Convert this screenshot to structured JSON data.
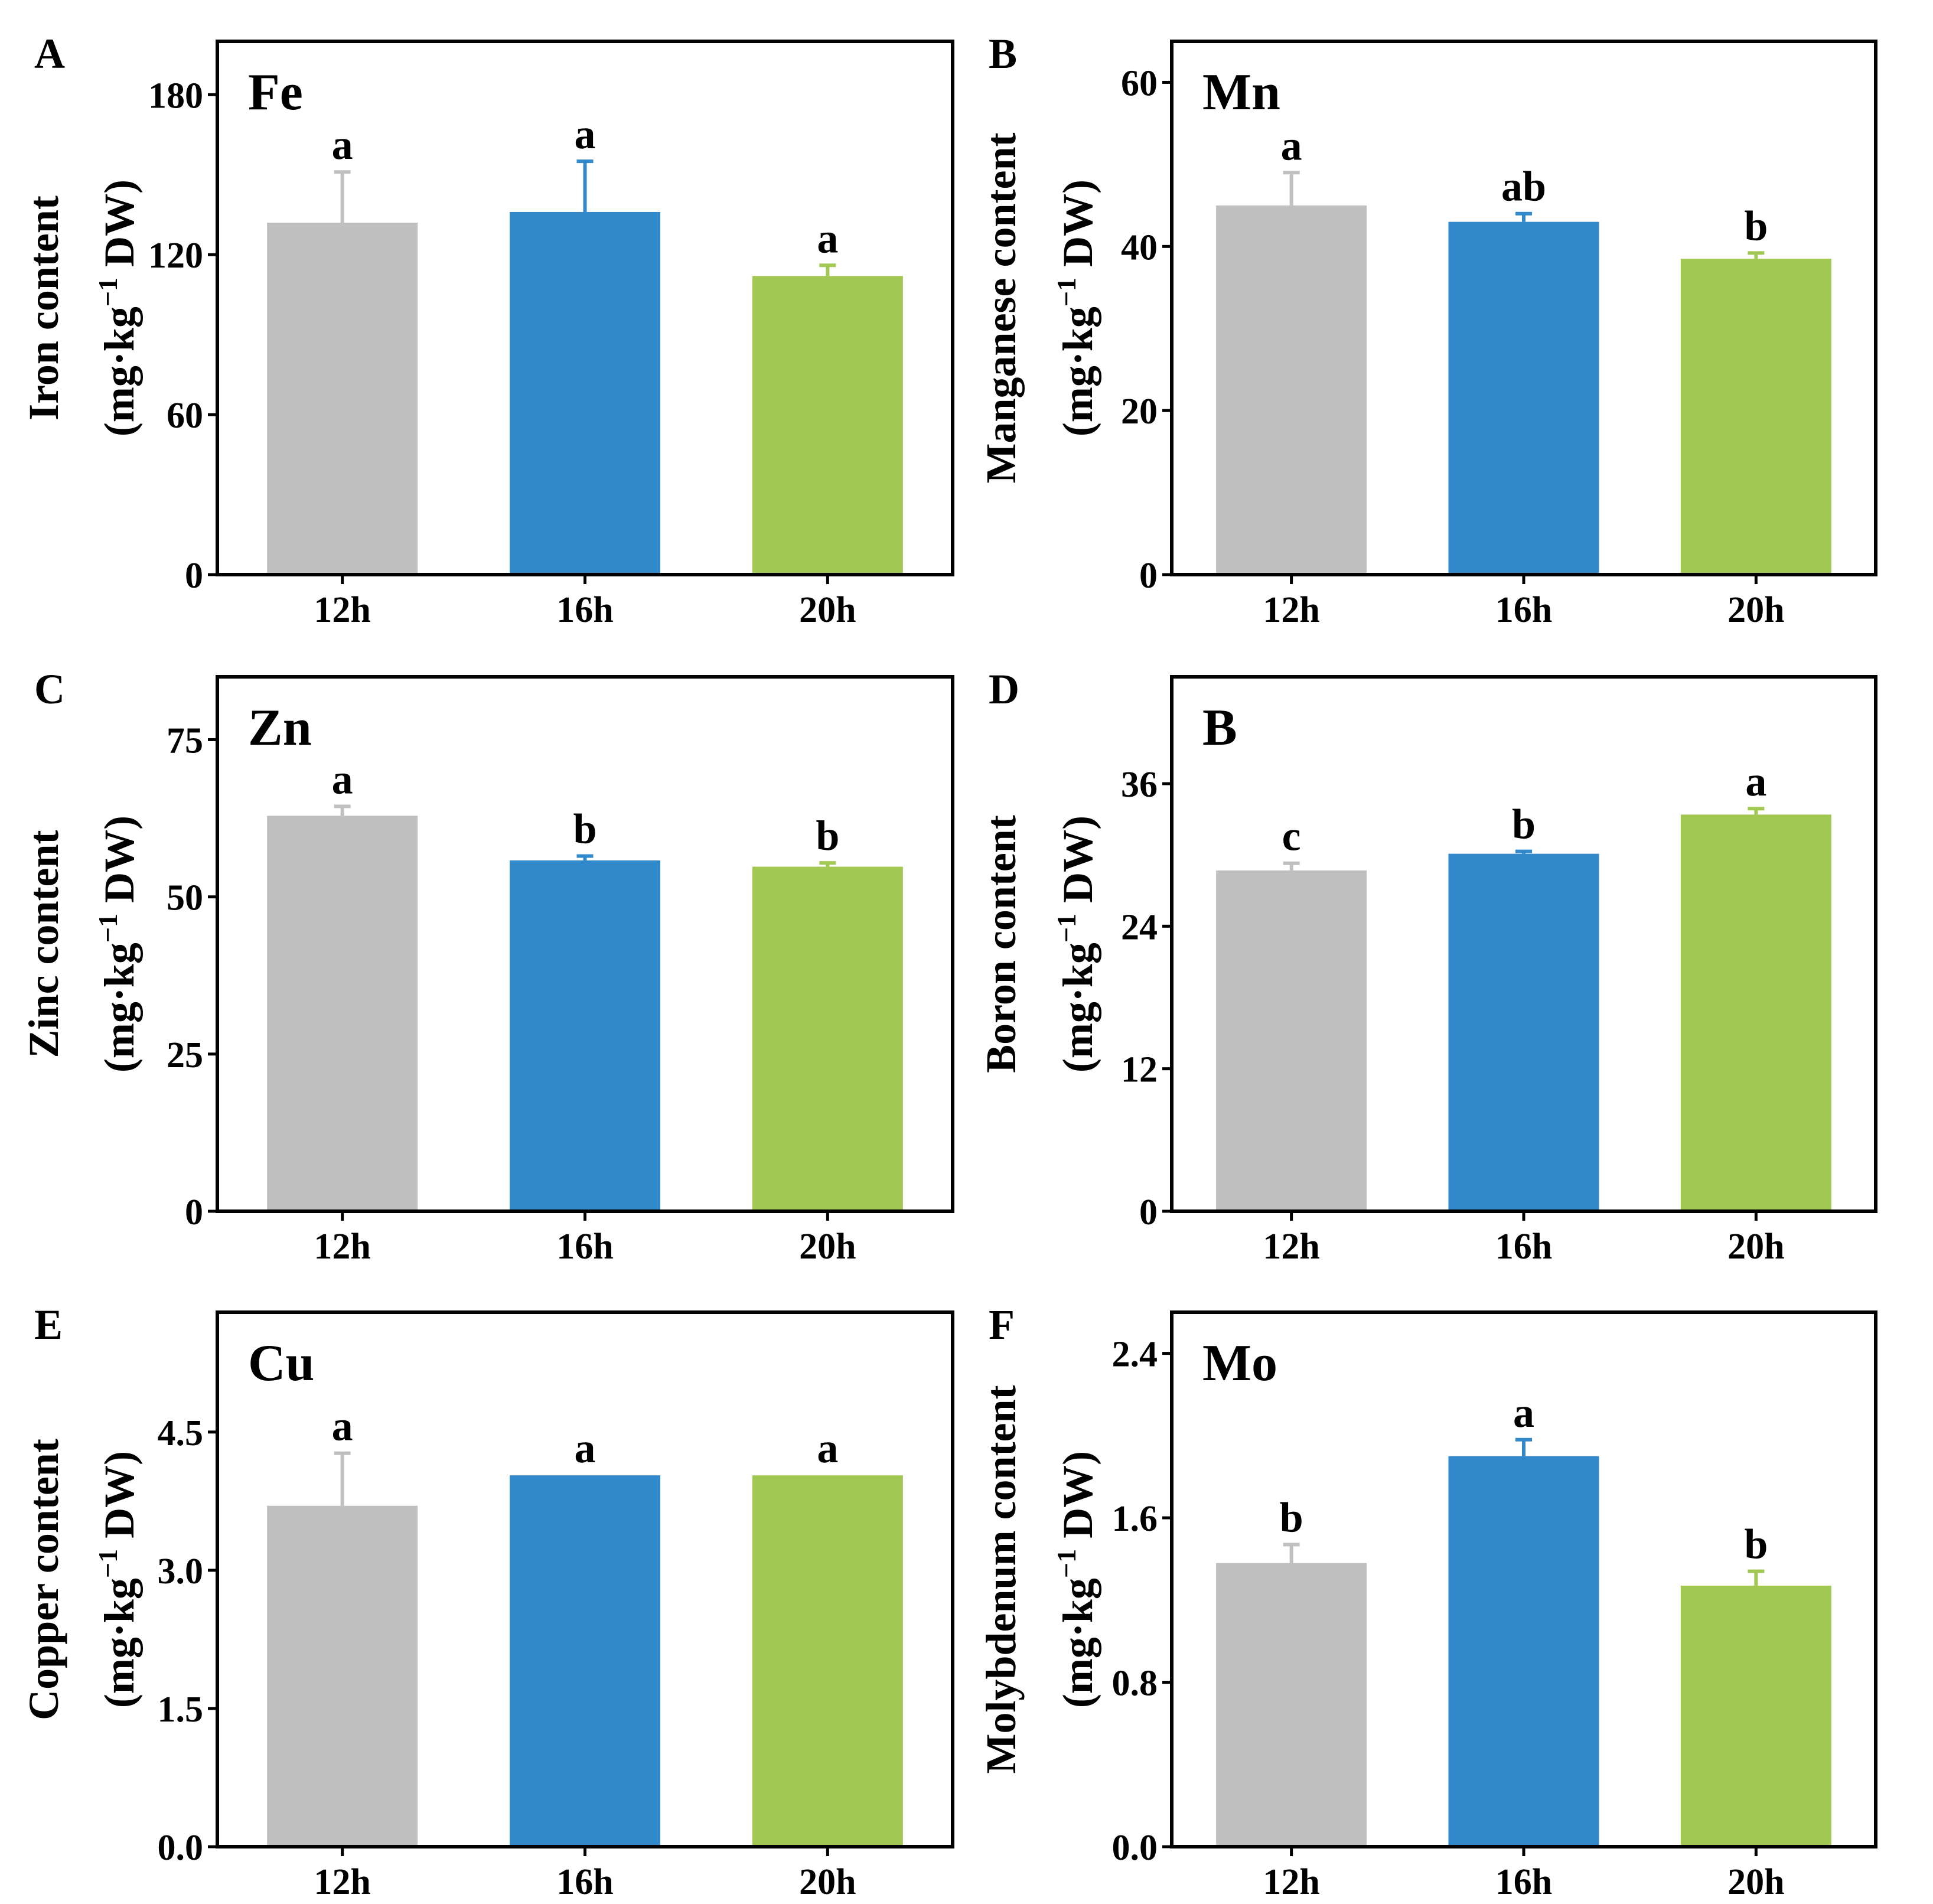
{
  "colors": {
    "12h": "#c0c0c0",
    "16h": "#3189cc",
    "20h": "#a0c853"
  },
  "chart_data": [
    {
      "panel": "A",
      "type": "bar",
      "element": "Fe",
      "ylabel_line1": "Iron content",
      "categories": [
        "12h",
        "16h",
        "20h"
      ],
      "values": [
        132,
        136,
        112
      ],
      "errors": [
        19,
        19,
        4
      ],
      "letters": [
        "a",
        "a",
        "a"
      ],
      "ylim": [
        0,
        200
      ],
      "yticks": [
        0,
        60,
        120,
        180
      ],
      "ytick_labels": [
        "0",
        "60",
        "120",
        "180"
      ]
    },
    {
      "panel": "B",
      "type": "bar",
      "element": "Mn",
      "ylabel_line1": "Manganese content",
      "categories": [
        "12h",
        "16h",
        "20h"
      ],
      "values": [
        45,
        43,
        38.5
      ],
      "errors": [
        4,
        1,
        0.7
      ],
      "letters": [
        "a",
        "ab",
        "b"
      ],
      "ylim": [
        0,
        65
      ],
      "yticks": [
        0,
        20,
        40,
        60
      ],
      "ytick_labels": [
        "0",
        "20",
        "40",
        "60"
      ]
    },
    {
      "panel": "C",
      "type": "bar",
      "element": "Zn",
      "ylabel_line1": "Zinc content",
      "categories": [
        "12h",
        "16h",
        "20h"
      ],
      "values": [
        62.9,
        55.8,
        54.8
      ],
      "errors": [
        1.5,
        0.7,
        0.6
      ],
      "letters": [
        "a",
        "b",
        "b"
      ],
      "ylim": [
        0,
        85
      ],
      "yticks": [
        0,
        25,
        50,
        75
      ],
      "ytick_labels": [
        "0",
        "25",
        "50",
        "75"
      ]
    },
    {
      "panel": "D",
      "type": "bar",
      "element": "B",
      "ylabel_line1": "Boron content",
      "categories": [
        "12h",
        "16h",
        "20h"
      ],
      "values": [
        28.7,
        30.1,
        33.4
      ],
      "errors": [
        0.6,
        0.2,
        0.5
      ],
      "letters": [
        "c",
        "b",
        "a"
      ],
      "ylim": [
        0,
        45
      ],
      "yticks": [
        0,
        12,
        24,
        36
      ],
      "ytick_labels": [
        "0",
        "12",
        "24",
        "36"
      ]
    },
    {
      "panel": "E",
      "type": "bar",
      "element": "Cu",
      "ylabel_line1": "Copper content",
      "categories": [
        "12h",
        "16h",
        "20h"
      ],
      "values": [
        3.7,
        4.03,
        4.03
      ],
      "errors": [
        0.57,
        0.0,
        0.0
      ],
      "letters": [
        "a",
        "a",
        "a"
      ],
      "ylim": [
        0,
        5.8
      ],
      "yticks": [
        0,
        1.5,
        3.0,
        4.5
      ],
      "ytick_labels": [
        "0.0",
        "1.5",
        "3.0",
        "4.5"
      ]
    },
    {
      "panel": "F",
      "type": "bar",
      "element": "Mo",
      "ylabel_line1": "Molybdenum content",
      "categories": [
        "12h",
        "16h",
        "20h"
      ],
      "values": [
        1.38,
        1.9,
        1.27
      ],
      "errors": [
        0.09,
        0.08,
        0.07
      ],
      "letters": [
        "b",
        "a",
        "b"
      ],
      "ylim": [
        0,
        2.6
      ],
      "yticks": [
        0,
        0.8,
        1.6,
        2.4
      ],
      "ytick_labels": [
        "0.0",
        "0.8",
        "1.6",
        "2.4"
      ]
    }
  ],
  "unit_label": {
    "open": "(mg·kg",
    "sup": "−1",
    "close": " DW)"
  }
}
